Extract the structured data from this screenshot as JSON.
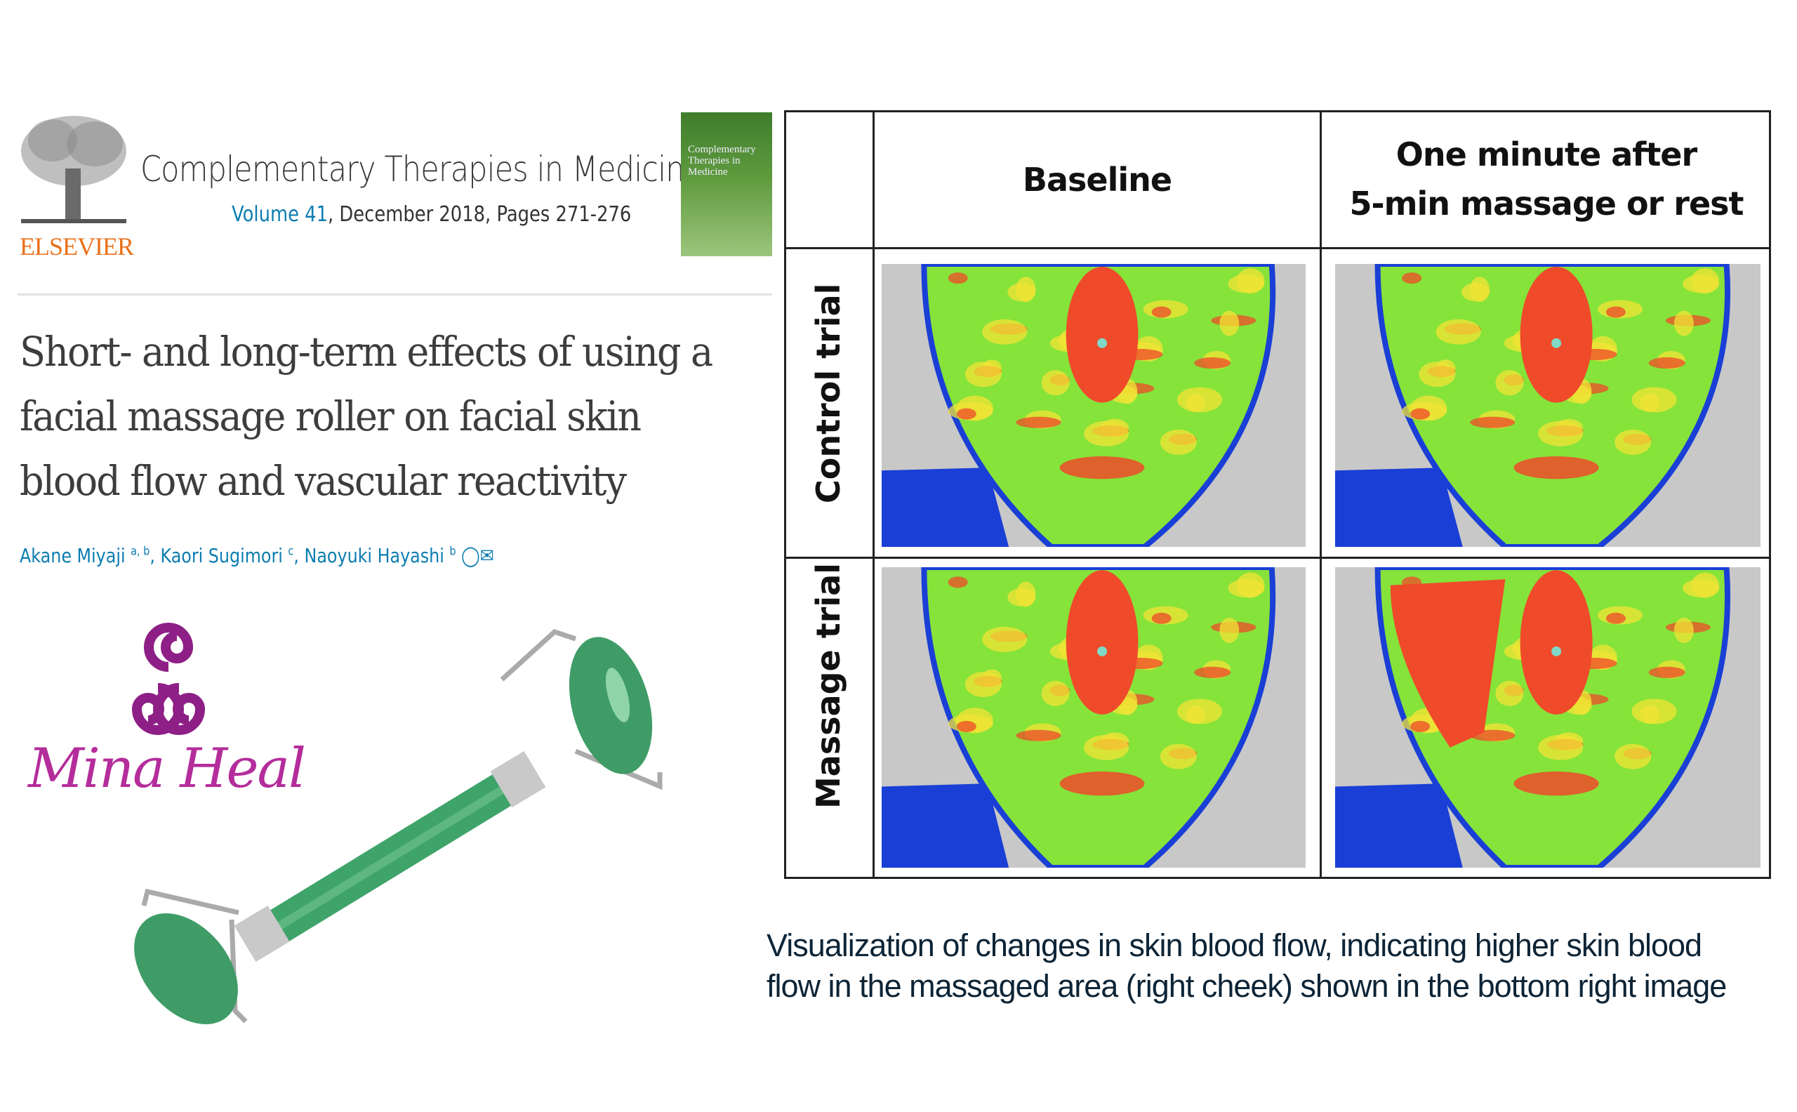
{
  "journal": {
    "publisher": "ELSEVIER",
    "name": "Complementary Therapies in Medicine",
    "volume_label": "Volume 41",
    "issue_details": ", December 2018, Pages 271-276",
    "cover_text": "Complementary Therapies in Medicine"
  },
  "article": {
    "title": "Short- and long-term effects of using a facial massage roller on facial skin blood flow and vascular reactivity",
    "authors": [
      {
        "name": "Akane Miyaji",
        "affil": "a, b"
      },
      {
        "name": "Kaori Sugimori",
        "affil": "c"
      },
      {
        "name": "Naoyuki Hayashi",
        "affil": "b"
      }
    ],
    "author_icons": [
      "person-icon",
      "email-icon"
    ]
  },
  "brand": {
    "name": "Mina Heal",
    "color": "#b42d9b"
  },
  "figure": {
    "columns": [
      "Baseline",
      "One minute after\n5-min massage or rest"
    ],
    "rows": [
      "Control trial",
      "Massage trial"
    ],
    "caption_lines": [
      "Visualization of changes in skin blood flow, indicating higher skin blood",
      "flow in the massaged area (right cheek) shown in the bottom right image"
    ],
    "colors": {
      "high": "#ef4a2a",
      "mid": "#f2e436",
      "low": "#86e33a",
      "edge": "#1a3fd6",
      "background": "#c8c8c8"
    }
  }
}
